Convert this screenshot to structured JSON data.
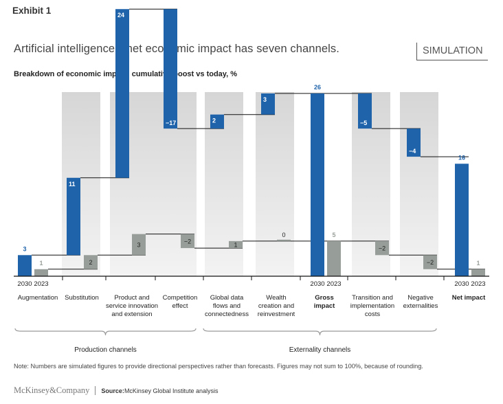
{
  "header": {
    "exhibit": "Exhibit 1",
    "title": "Artificial intelligence’s net economic impact has seven channels.",
    "badge": "SIMULATION",
    "subtitle": "Breakdown of economic impact, cumulative boost vs today, %"
  },
  "colors": {
    "series_2030": "#1f63ab",
    "series_2023": "#979e99",
    "band": "#e2e2e2"
  },
  "chart_data": {
    "type": "bar",
    "subtype": "waterfall",
    "title": "Breakdown of economic impact, cumulative boost vs today, %",
    "series": [
      {
        "name": "2030",
        "values": [
          3,
          11,
          24,
          -17,
          2,
          3,
          26,
          -5,
          -4,
          16
        ],
        "kind": [
          "total",
          "delta",
          "delta",
          "delta",
          "delta",
          "delta",
          "total",
          "delta",
          "delta",
          "total"
        ]
      },
      {
        "name": "2023",
        "values": [
          1,
          2,
          3,
          -2,
          1,
          0,
          5,
          -2,
          -2,
          1
        ],
        "kind": [
          "total",
          "delta",
          "delta",
          "delta",
          "delta",
          "delta",
          "total",
          "delta",
          "delta",
          "total"
        ]
      }
    ],
    "categories": [
      "Augmentation",
      "Substitution",
      "Product and service innovation and extension",
      "Competition effect",
      "Global data flows and connectedness",
      "Wealth creation and reinvestment",
      "Gross impact",
      "Transition and implementation costs",
      "Negative externalities",
      "Net impact"
    ],
    "category_lines": [
      [
        "Augmentation"
      ],
      [
        "Substitution"
      ],
      [
        "Product and",
        "service innovation",
        "and extension"
      ],
      [
        "Competition",
        "effect"
      ],
      [
        "Global data",
        "flows and",
        "connectedness"
      ],
      [
        "Wealth",
        "creation and",
        "reinvestment"
      ],
      [
        "Gross",
        "impact"
      ],
      [
        "Transition and",
        "implementation",
        "costs"
      ],
      [
        "Negative",
        "externalities"
      ],
      [
        "Net impact"
      ]
    ],
    "bold_categories": [
      6,
      9
    ],
    "year_labels": [
      "2030",
      "2023"
    ],
    "groups": [
      {
        "label": "Production channels",
        "from": 0,
        "to": 3
      },
      {
        "label": "Externality channels",
        "from": 4,
        "to": 8
      }
    ],
    "xlabel": "",
    "ylabel": "",
    "ylim": [
      0,
      26
    ],
    "grid": false,
    "legend": "none"
  },
  "footer": {
    "note": "Note: Numbers are simulated figures to provide directional perspectives rather than forecasts. Figures may not sum to 100%, because of rounding.",
    "logo": "McKinsey&Company",
    "source_label": "Source:",
    "source_text": " McKinsey Global Institute analysis"
  }
}
